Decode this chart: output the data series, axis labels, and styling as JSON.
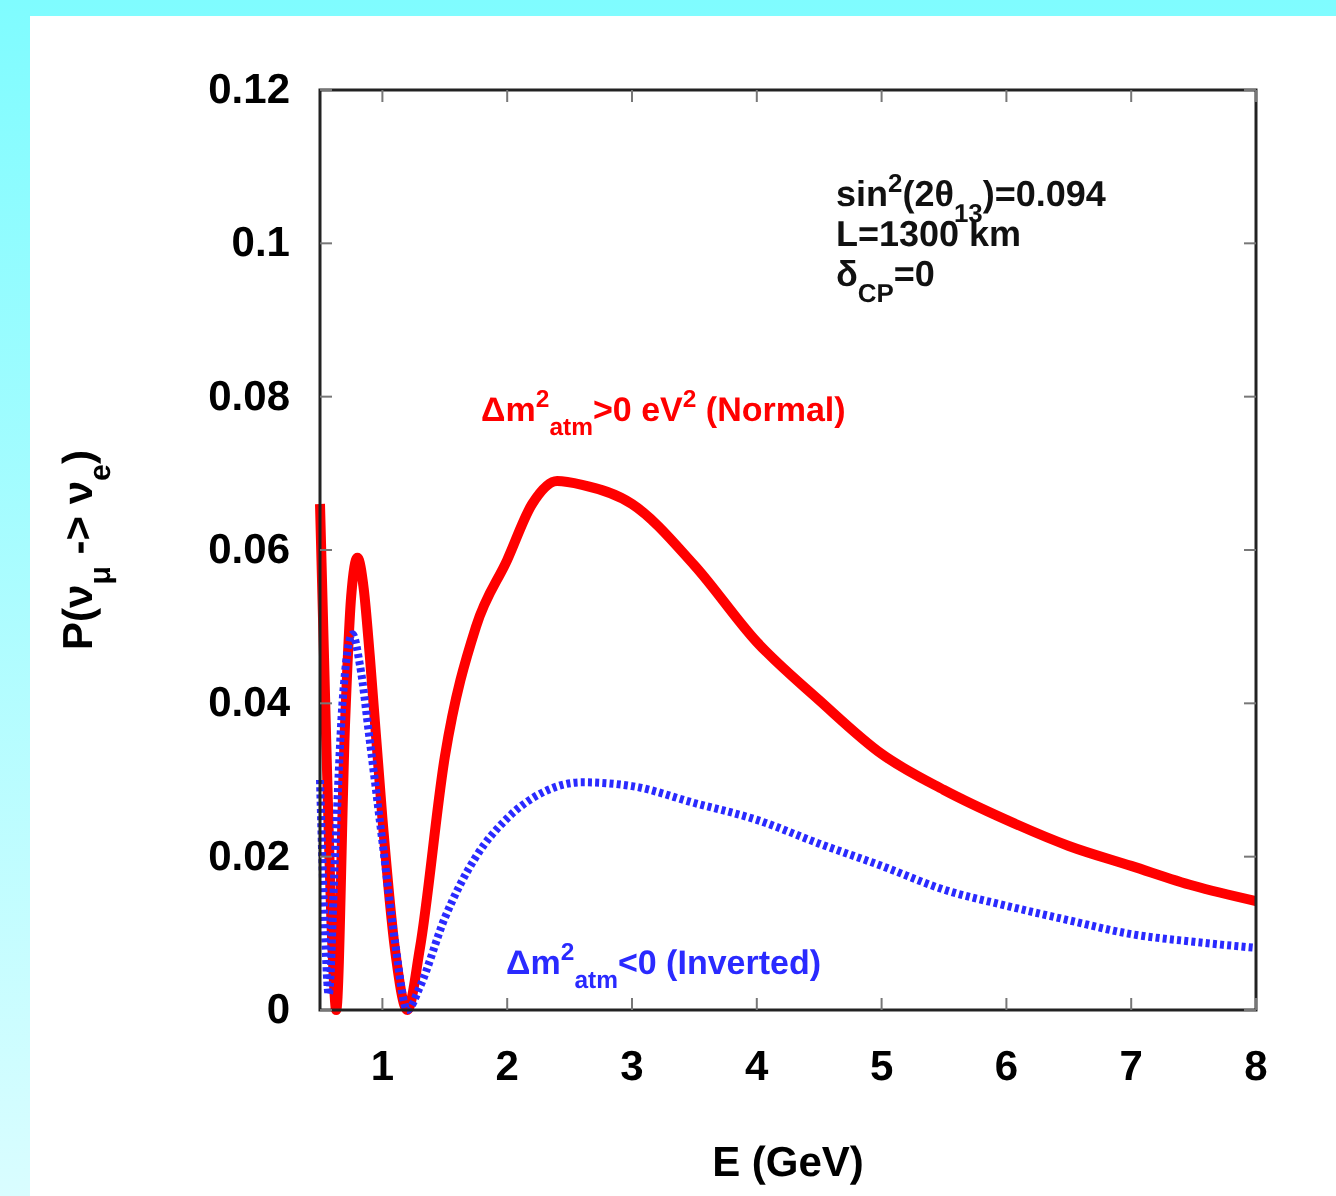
{
  "chart_data": {
    "type": "line",
    "xlabel": "E (GeV)",
    "ylabel": "P(ν$_{μ}$ -> ν$_{e}$)",
    "xlim": [
      0.5,
      8
    ],
    "xticks": [
      1,
      2,
      3,
      4,
      5,
      6,
      7,
      8
    ],
    "ylim": [
      0,
      0.12
    ],
    "yticks": [
      0,
      0.02,
      0.04,
      0.06,
      0.08,
      0.1,
      0.12
    ],
    "grid": false,
    "annotations": [
      "sin$^{2}$(2θ$_{13}$)=0.094",
      "L=1300 km",
      "δ$_{CP}$=0"
    ],
    "series": [
      {
        "name": "Δm$^{2}$$_{atm}$>0 eV$^{2}$ (Normal)",
        "color": "#ff0000",
        "line_style": "solid",
        "x": [
          0.5,
          0.55,
          0.6,
          0.63,
          0.7,
          0.75,
          0.8,
          0.85,
          0.9,
          1.0,
          1.1,
          1.2,
          1.3,
          1.5,
          1.75,
          2.0,
          2.2,
          2.4,
          2.6,
          3.0,
          3.5,
          4.0,
          4.5,
          5.0,
          5.5,
          6.0,
          6.5,
          7.0,
          7.5,
          8.0
        ],
        "values": [
          0.066,
          0.035,
          0.008,
          0.0,
          0.037,
          0.054,
          0.059,
          0.055,
          0.046,
          0.025,
          0.008,
          0.0,
          0.008,
          0.033,
          0.05,
          0.0587,
          0.066,
          0.069,
          0.0685,
          0.066,
          0.058,
          0.048,
          0.0404,
          0.0334,
          0.0287,
          0.0248,
          0.0214,
          0.0188,
          0.0162,
          0.0142
        ]
      },
      {
        "name": "Δm$^{2}$$_{atm}$<0 (Inverted)",
        "color": "#2a2aff",
        "line_style": "dotted",
        "x": [
          0.5,
          0.54,
          0.57,
          0.62,
          0.68,
          0.76,
          0.82,
          0.9,
          1.0,
          1.1,
          1.2,
          1.3,
          1.5,
          1.75,
          2.0,
          2.3,
          2.6,
          3.0,
          3.5,
          4.0,
          4.5,
          5.0,
          5.5,
          6.0,
          6.5,
          7.0,
          7.5,
          8.0
        ],
        "values": [
          0.03,
          0.01,
          0.002,
          0.02,
          0.04,
          0.049,
          0.045,
          0.035,
          0.022,
          0.009,
          0.0,
          0.003,
          0.012,
          0.02,
          0.025,
          0.0285,
          0.0297,
          0.0292,
          0.027,
          0.0248,
          0.0217,
          0.0188,
          0.0157,
          0.0136,
          0.0117,
          0.0099,
          0.0089,
          0.0081
        ]
      }
    ]
  }
}
